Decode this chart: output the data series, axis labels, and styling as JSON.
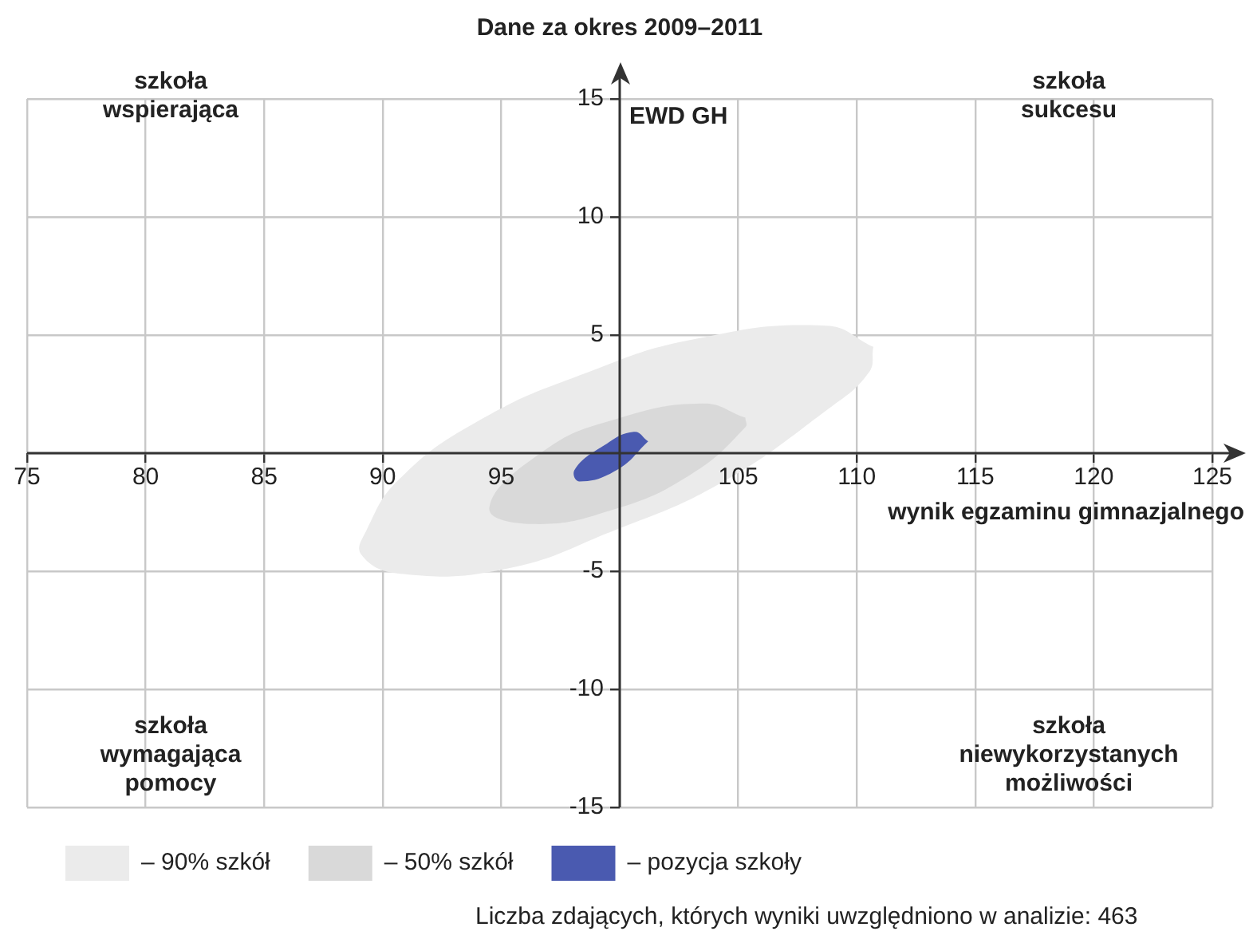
{
  "chart_data": {
    "type": "area",
    "title": "Dane za okres 2009–2011",
    "xlabel": "wynik egzaminu gimnazjalnego",
    "ylabel": "EWD GH",
    "xlim": [
      75,
      125
    ],
    "ylim": [
      -15,
      15
    ],
    "xticks": [
      75,
      80,
      85,
      90,
      95,
      {
        "value": 100,
        "label": null
      },
      105,
      110,
      115,
      120,
      125
    ],
    "yticks": [
      -15,
      -10,
      -5,
      {
        "value": 0,
        "label": null
      },
      5,
      10,
      15
    ],
    "grid": true,
    "legend": "bottom",
    "marker": "none",
    "series": [
      {
        "name": "– 90% szkół",
        "color": "#ebebeb",
        "x": [
          110.7,
          108.7,
          103.0,
          98.6,
          94.1,
          90.7,
          89.3,
          89.1,
          90.7,
          95.2,
          99.7,
          104.2,
          108.7,
          110.5
        ],
        "values": [
          4.5,
          5.4,
          4.8,
          3.4,
          1.4,
          -1.1,
          -3.3,
          -4.3,
          -5.1,
          -4.9,
          -3.3,
          -1.3,
          1.8,
          3.4
        ]
      },
      {
        "name": "– 50% szkół",
        "color": "#d9d9d9",
        "x": [
          105.3,
          103.5,
          99.7,
          96.8,
          94.5,
          96.3,
          99.7,
          103.0,
          105.3
        ],
        "values": [
          1.5,
          2.1,
          1.4,
          0.1,
          -2.3,
          -3.0,
          -2.4,
          -0.9,
          1.1
        ]
      },
      {
        "name": "– pozycja szkoły",
        "color": "#4a5ab0",
        "x": [
          101.2,
          100.6,
          99.3,
          98.1,
          98.3,
          99.9
        ],
        "values": [
          0.5,
          0.9,
          0.3,
          -0.7,
          -1.2,
          -0.7
        ]
      }
    ],
    "annotations": [
      "szkoła\nwspierająca",
      "szkoła\nsukcesu",
      "szkoła\nwymagająca\npomocy",
      "szkoła\nniewykorzystanych\nmożliwości",
      "Liczba zdających, których wyniki uwzględniono w analizie: 463"
    ]
  }
}
